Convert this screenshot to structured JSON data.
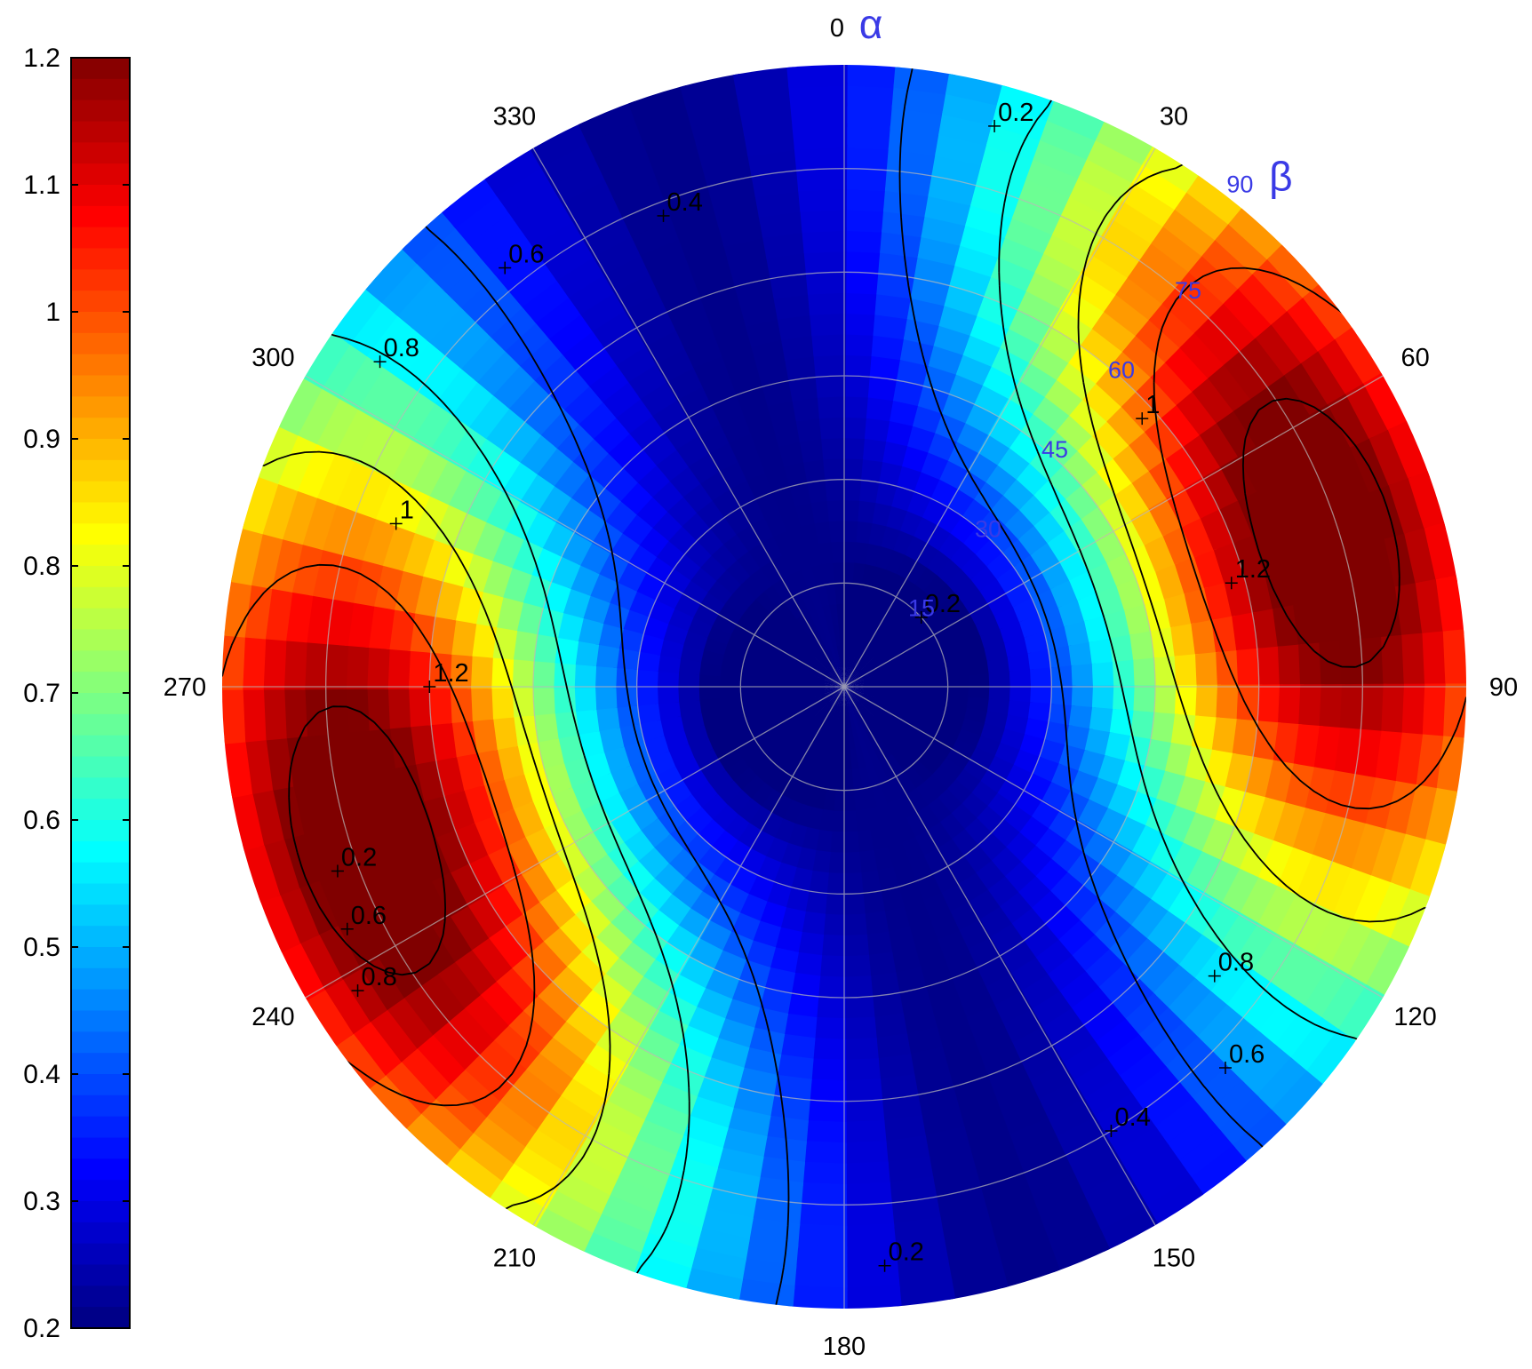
{
  "chart_data": {
    "type": "heatmap",
    "subtype": "polar pole-figure contour map",
    "colormap": "jet",
    "grid": true,
    "colorbar": {
      "position": "left",
      "range": [
        0.2,
        1.2
      ],
      "ticks": [
        1.2,
        1.1,
        1,
        0.9,
        0.8,
        0.7,
        0.6,
        0.5,
        0.4,
        0.3,
        0.2
      ],
      "tick_labels": [
        "1.2",
        "1.1",
        "1",
        "0.9",
        "0.8",
        "0.7",
        "0.6",
        "0.5",
        "0.4",
        "0.3",
        "0.2"
      ]
    },
    "angular_axis": {
      "symbol": "α",
      "zero_label": "0",
      "direction": "clockwise from top",
      "ticks": [
        30,
        60,
        90,
        120,
        150,
        180,
        210,
        240,
        270,
        300,
        330
      ],
      "tick_labels": [
        "30",
        "60",
        "90",
        "120",
        "150",
        "180",
        "210",
        "240",
        "270",
        "300",
        "330"
      ]
    },
    "radial_axis": {
      "symbol": "β",
      "max_label": "90",
      "ticks": [
        15,
        30,
        45,
        60,
        75
      ],
      "tick_labels": [
        "15",
        "30",
        "45",
        "60",
        "75"
      ],
      "color": "#3a3ae6"
    },
    "contour_levels": [
      0.2,
      0.4,
      0.6,
      0.8,
      1,
      1.2
    ],
    "contour_labels": [
      {
        "text": "0.2",
        "alpha": 15,
        "beta": 84
      },
      {
        "text": "0.4",
        "alpha": 339,
        "beta": 73
      },
      {
        "text": "0.6",
        "alpha": 321,
        "beta": 78
      },
      {
        "text": "0.8",
        "alpha": 305,
        "beta": 82
      },
      {
        "text": "1",
        "alpha": 290,
        "beta": 69
      },
      {
        "text": "1.2",
        "alpha": 270,
        "beta": 60
      },
      {
        "text": "0.2",
        "alpha": 250,
        "beta": 78
      },
      {
        "text": "0.6",
        "alpha": 244,
        "beta": 80
      },
      {
        "text": "0.8",
        "alpha": 238,
        "beta": 83
      },
      {
        "text": "0.2",
        "alpha": 48,
        "beta": 15
      },
      {
        "text": "1",
        "alpha": 48,
        "beta": 58
      },
      {
        "text": "1.2",
        "alpha": 75,
        "beta": 58
      },
      {
        "text": "0.8",
        "alpha": 128,
        "beta": 68
      },
      {
        "text": "0.6",
        "alpha": 135,
        "beta": 78
      },
      {
        "text": "0.4",
        "alpha": 149,
        "beta": 75
      },
      {
        "text": "0.2",
        "alpha": 176,
        "beta": 84
      }
    ],
    "field": {
      "description": "value as a function of (alpha, beta)",
      "minimum": {
        "value": 0.2,
        "at_beta": 0
      },
      "maxima": [
        {
          "value": 1.25,
          "alpha": 72,
          "beta": 60
        },
        {
          "value": 1.25,
          "alpha": 252,
          "beta": 60
        }
      ],
      "secondary_minima": [
        {
          "value": 0.2,
          "alpha": 0,
          "beta": 85
        },
        {
          "value": 0.2,
          "alpha": 180,
          "beta": 85
        }
      ]
    }
  }
}
